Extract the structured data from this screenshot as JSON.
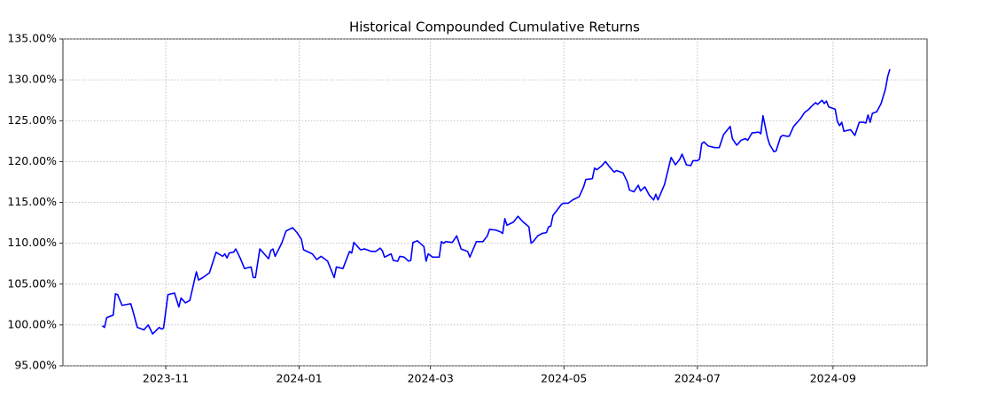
{
  "chart_data": {
    "type": "line",
    "title": "Historical Compounded Cumulative Returns",
    "xlim": [
      "2023-09-15",
      "2024-10-14"
    ],
    "xticks": [
      {
        "value": "2023-11-01",
        "label": "2023-11"
      },
      {
        "value": "2024-01-01",
        "label": "2024-01"
      },
      {
        "value": "2024-03-01",
        "label": "2024-03"
      },
      {
        "value": "2024-05-01",
        "label": "2024-05"
      },
      {
        "value": "2024-07-01",
        "label": "2024-07"
      },
      {
        "value": "2024-09-01",
        "label": "2024-09"
      }
    ],
    "ylim": [
      95,
      135
    ],
    "yticks": [
      {
        "value": 95,
        "label": "95.00%"
      },
      {
        "value": 100,
        "label": "100.00%"
      },
      {
        "value": 105,
        "label": "105.00%"
      },
      {
        "value": 110,
        "label": "110.00%"
      },
      {
        "value": 115,
        "label": "115.00%"
      },
      {
        "value": 120,
        "label": "120.00%"
      },
      {
        "value": 125,
        "label": "125.00%"
      },
      {
        "value": 130,
        "label": "130.00%"
      },
      {
        "value": 135,
        "label": "135.00%"
      }
    ],
    "grid": true,
    "x": [
      "2023-10-03",
      "2023-10-04",
      "2023-10-05",
      "2023-10-08",
      "2023-10-09",
      "2023-10-10",
      "2023-10-12",
      "2023-10-16",
      "2023-10-17",
      "2023-10-19",
      "2023-10-22",
      "2023-10-24",
      "2023-10-26",
      "2023-10-29",
      "2023-10-30",
      "2023-10-31",
      "2023-11-02",
      "2023-11-05",
      "2023-11-07",
      "2023-11-08",
      "2023-11-10",
      "2023-11-12",
      "2023-11-15",
      "2023-11-16",
      "2023-11-18",
      "2023-11-21",
      "2023-11-24",
      "2023-11-27",
      "2023-11-28",
      "2023-11-29",
      "2023-11-30",
      "2023-12-02",
      "2023-12-03",
      "2023-12-05",
      "2023-12-07",
      "2023-12-10",
      "2023-12-11",
      "2023-12-12",
      "2023-12-14",
      "2023-12-17",
      "2023-12-18",
      "2023-12-19",
      "2023-12-20",
      "2023-12-21",
      "2023-12-24",
      "2023-12-26",
      "2023-12-29",
      "2023-12-31",
      "2024-01-02",
      "2024-01-03",
      "2024-01-07",
      "2024-01-09",
      "2024-01-11",
      "2024-01-14",
      "2024-01-17",
      "2024-01-18",
      "2024-01-21",
      "2024-01-24",
      "2024-01-25",
      "2024-01-26",
      "2024-01-29",
      "2024-01-31",
      "2024-02-03",
      "2024-02-05",
      "2024-02-07",
      "2024-02-08",
      "2024-02-09",
      "2024-02-12",
      "2024-02-13",
      "2024-02-15",
      "2024-02-16",
      "2024-02-18",
      "2024-02-20",
      "2024-02-21",
      "2024-02-22",
      "2024-02-24",
      "2024-02-27",
      "2024-02-28",
      "2024-02-29",
      "2024-03-02",
      "2024-03-05",
      "2024-03-06",
      "2024-03-07",
      "2024-03-08",
      "2024-03-11",
      "2024-03-13",
      "2024-03-15",
      "2024-03-18",
      "2024-03-19",
      "2024-03-22",
      "2024-03-25",
      "2024-03-27",
      "2024-03-28",
      "2024-03-31",
      "2024-04-02",
      "2024-04-03",
      "2024-04-04",
      "2024-04-05",
      "2024-04-08",
      "2024-04-10",
      "2024-04-12",
      "2024-04-15",
      "2024-04-16",
      "2024-04-17",
      "2024-04-19",
      "2024-04-21",
      "2024-04-23",
      "2024-04-24",
      "2024-04-25",
      "2024-04-26",
      "2024-04-30",
      "2024-05-01",
      "2024-05-03",
      "2024-05-05",
      "2024-05-08",
      "2024-05-10",
      "2024-05-11",
      "2024-05-14",
      "2024-05-15",
      "2024-05-16",
      "2024-05-18",
      "2024-05-20",
      "2024-05-22",
      "2024-05-24",
      "2024-05-25",
      "2024-05-28",
      "2024-05-30",
      "2024-05-31",
      "2024-06-02",
      "2024-06-04",
      "2024-06-05",
      "2024-06-07",
      "2024-06-09",
      "2024-06-11",
      "2024-06-12",
      "2024-06-13",
      "2024-06-16",
      "2024-06-19",
      "2024-06-21",
      "2024-06-23",
      "2024-06-24",
      "2024-06-26",
      "2024-06-28",
      "2024-06-29",
      "2024-07-01",
      "2024-07-02",
      "2024-07-03",
      "2024-07-04",
      "2024-07-06",
      "2024-07-09",
      "2024-07-11",
      "2024-07-13",
      "2024-07-16",
      "2024-07-17",
      "2024-07-19",
      "2024-07-21",
      "2024-07-23",
      "2024-07-24",
      "2024-07-26",
      "2024-07-29",
      "2024-07-30",
      "2024-07-31",
      "2024-08-02",
      "2024-08-03",
      "2024-08-05",
      "2024-08-06",
      "2024-08-08",
      "2024-08-09",
      "2024-08-11",
      "2024-08-12",
      "2024-08-14",
      "2024-08-17",
      "2024-08-19",
      "2024-08-21",
      "2024-08-22",
      "2024-08-24",
      "2024-08-25",
      "2024-08-27",
      "2024-08-28",
      "2024-08-29",
      "2024-08-30",
      "2024-09-02",
      "2024-09-03",
      "2024-09-04",
      "2024-09-05",
      "2024-09-06",
      "2024-09-09",
      "2024-09-11",
      "2024-09-13",
      "2024-09-15",
      "2024-09-16",
      "2024-09-17",
      "2024-09-18",
      "2024-09-19",
      "2024-09-21",
      "2024-09-23",
      "2024-09-25",
      "2024-09-26",
      "2024-09-27"
    ],
    "series": [
      {
        "color": "#0000ff",
        "values": [
          99.9,
          99.7,
          100.9,
          101.2,
          103.8,
          103.7,
          102.4,
          102.6,
          101.7,
          99.7,
          99.4,
          100.0,
          98.9,
          99.7,
          99.5,
          99.6,
          103.7,
          103.9,
          102.2,
          103.3,
          102.7,
          103.0,
          106.5,
          105.5,
          105.8,
          106.4,
          108.9,
          108.4,
          108.7,
          108.2,
          108.8,
          108.9,
          109.3,
          108.2,
          106.9,
          107.1,
          105.8,
          105.8,
          109.3,
          108.4,
          108.1,
          109.1,
          109.3,
          108.4,
          110.0,
          111.5,
          111.9,
          111.3,
          110.5,
          109.2,
          108.7,
          108.0,
          108.4,
          107.8,
          105.8,
          107.1,
          106.9,
          109.0,
          108.8,
          110.1,
          109.2,
          109.3,
          109.0,
          109.0,
          109.4,
          109.1,
          108.3,
          108.7,
          107.9,
          107.8,
          108.4,
          108.3,
          107.8,
          107.9,
          110.1,
          110.3,
          109.6,
          107.8,
          108.7,
          108.3,
          108.3,
          110.2,
          110.0,
          110.2,
          110.1,
          110.9,
          109.3,
          109.0,
          108.3,
          110.2,
          110.2,
          110.9,
          111.7,
          111.6,
          111.4,
          111.2,
          113.0,
          112.2,
          112.6,
          113.3,
          112.7,
          112.0,
          110.0,
          110.2,
          110.9,
          111.2,
          111.3,
          112.0,
          112.1,
          113.4,
          114.8,
          114.9,
          114.9,
          115.3,
          115.7,
          116.9,
          117.8,
          117.9,
          119.2,
          119.0,
          119.4,
          120.0,
          119.3,
          118.7,
          118.9,
          118.6,
          117.5,
          116.5,
          116.3,
          117.1,
          116.4,
          116.9,
          115.9,
          115.3,
          116.0,
          115.3,
          117.2,
          120.5,
          119.6,
          120.3,
          120.9,
          119.6,
          119.5,
          120.1,
          120.1,
          120.3,
          122.2,
          122.4,
          121.9,
          121.7,
          121.7,
          123.3,
          124.3,
          122.8,
          122.0,
          122.6,
          122.8,
          122.6,
          123.5,
          123.6,
          123.4,
          125.6,
          123.0,
          122.1,
          121.2,
          121.3,
          123.0,
          123.2,
          123.1,
          123.1,
          124.3,
          125.2,
          126.0,
          126.4,
          126.7,
          127.2,
          127.0,
          127.5,
          127.1,
          127.4,
          126.7,
          126.4,
          124.9,
          124.4,
          124.8,
          123.7,
          123.9,
          123.2,
          124.8,
          124.8,
          124.7,
          125.7,
          124.8,
          125.9,
          126.1,
          127.1,
          128.9,
          130.4,
          131.3
        ]
      }
    ]
  }
}
